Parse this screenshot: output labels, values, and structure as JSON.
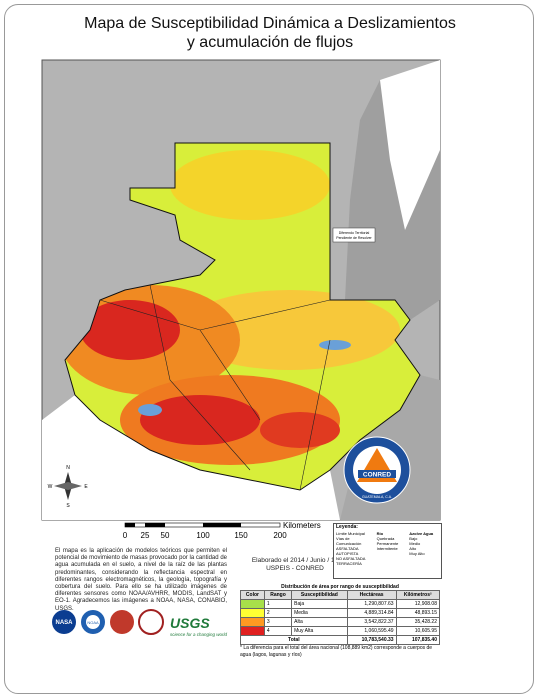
{
  "header": {
    "title_lines": [
      "Mapa de Susceptibilidad Dinámica a Deslizamientos",
      "y acumulación de flujos"
    ]
  },
  "map": {
    "inset_note": [
      "Diferendo Territorial",
      "Pendiente de Resolver"
    ],
    "compass": [
      "N",
      "S",
      "E",
      "W"
    ],
    "logo": {
      "name": "CONRED",
      "country": "GUATEMALA, C.A."
    }
  },
  "scale_bar": {
    "labels": [
      "0",
      "25",
      "50",
      "100",
      "150",
      "200"
    ],
    "unit": "Kilometers"
  },
  "legend": {
    "title": "Leyenda:",
    "items": [
      "Límite Municipal",
      "Vías de Comunicación",
      "ASFALTADA",
      "AUTOPISTA",
      "NO ASFALTADA",
      "TERRACERÍA"
    ],
    "rivers": {
      "title": "Río",
      "items": [
        "Quebrada",
        "Permanente",
        "Intermitente"
      ]
    },
    "water": {
      "title": "Azolve Agua",
      "items": [
        "Bajo",
        "Medio",
        "Alto",
        "Muy Alto"
      ]
    }
  },
  "description": "El mapa es la aplicación de modelos teóricos que permiten el potencial de movimiento de masas provocado por la cantidad de agua acumulada en el suelo, a nivel de la raíz de las plantas predominantes, considerando la reflectancia espectral en diferentes rangos electromagnéticos, la geología, topografía y cobertura del suelo. Para ello se ha utilizado imágenes de diferentes sensores como NOAA/AVHRR, MODIS, LandSAT y EO-1. Agradecemos las imágenes a NOAA, NASA, CONABIO, USGS.",
  "credits": [
    "Elaborado el 2014 / Junio / 10",
    "USPEIS - CONRED"
  ],
  "logos": {
    "nasa": "NASA",
    "noaa": "NOAA",
    "usgs": "USGS",
    "usgs_tagline": "science for a changing world"
  },
  "table": {
    "title": "Distribución de área por rango de susceptibilidad",
    "headers": [
      "Color",
      "Rango",
      "Susceptibilidad",
      "Hectáreas",
      "Kilómetros²"
    ],
    "swatches": [
      "#a8e04a",
      "#ffff33",
      "#ff9922",
      "#e02020"
    ],
    "rows": [
      [
        "1",
        "Baja",
        "1,290,807.63",
        "12,908.08"
      ],
      [
        "2",
        "Media",
        "4,889,314.84",
        "48,893.15"
      ],
      [
        "3",
        "Alta",
        "3,542,822.37",
        "35,428.22"
      ],
      [
        "4",
        "Muy Alta",
        "1,060,595.49",
        "10,605.95"
      ]
    ],
    "total": [
      "Total",
      "10,783,540.33",
      "107,835.40"
    ],
    "note": "* La diferencia para el total del área nacional (108,889 km2) corresponde a cuerpos de agua (lagos, lagunas y ríos)"
  }
}
